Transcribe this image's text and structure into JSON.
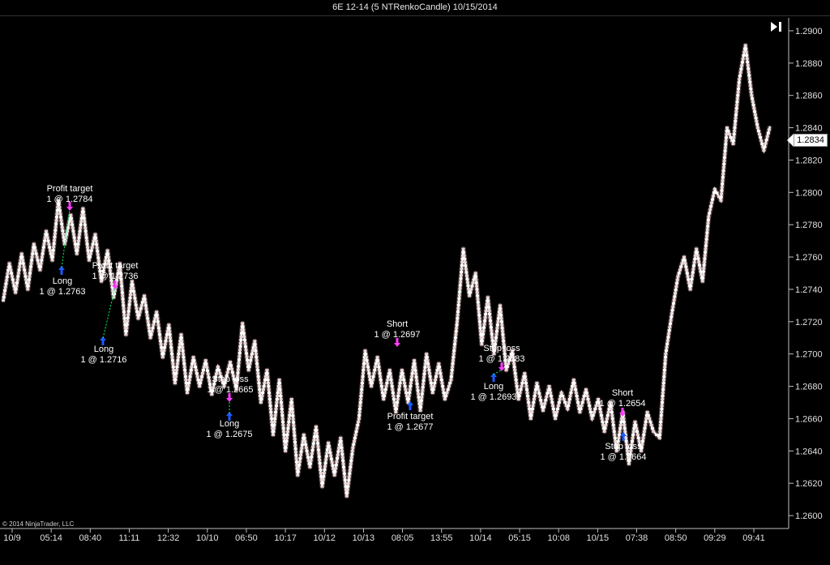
{
  "window": {
    "title": "6E 12-14 (5 NTRenkoCandle)  10/15/2014"
  },
  "copyright": "© 2014 NinjaTrader, LLC",
  "last_price": "1.2834",
  "icons": {
    "scroll_end": "skip-to-end-icon"
  },
  "colors": {
    "background": "#000000",
    "price_line": "#ffffff",
    "axis": "#bfbfbf",
    "sell_marker": "#ff3cff",
    "buy_marker": "#1e5bff",
    "entry_line": "#00ff66"
  },
  "chart_data": {
    "type": "line",
    "title": "",
    "xlabel": "",
    "ylabel": "",
    "ylim": [
      1.2593,
      1.2908
    ],
    "y_ticks": [
      1.26,
      1.262,
      1.264,
      1.266,
      1.268,
      1.27,
      1.272,
      1.274,
      1.276,
      1.278,
      1.28,
      1.282,
      1.284,
      1.286,
      1.288,
      1.29
    ],
    "y_tick_labels": [
      "1.2600",
      "1.2620",
      "1.2640",
      "1.2660",
      "1.2680",
      "1.2700",
      "1.2720",
      "1.2740",
      "1.2760",
      "1.2780",
      "1.2800",
      "1.2820",
      "1.2840",
      "1.2860",
      "1.2880",
      "1.2900"
    ],
    "x_tick_labels": [
      "10/9",
      "05:14",
      "08:40",
      "11:11",
      "12:32",
      "10/10",
      "06:50",
      "10:17",
      "10/12",
      "10/13",
      "08:05",
      "13:55",
      "10/14",
      "05:15",
      "10:08",
      "10/15",
      "07:38",
      "08:50",
      "09:29",
      "09:41"
    ],
    "grid": false,
    "series": [
      {
        "values": [
          1.2733,
          1.2756,
          1.2738,
          1.2762,
          1.274,
          1.2768,
          1.2752,
          1.2776,
          1.2758,
          1.2795,
          1.2768,
          1.2786,
          1.2762,
          1.279,
          1.2758,
          1.2774,
          1.2745,
          1.2764,
          1.2735,
          1.2756,
          1.2712,
          1.2745,
          1.2722,
          1.2736,
          1.271,
          1.2726,
          1.2698,
          1.2718,
          1.2682,
          1.2712,
          1.2676,
          1.2698,
          1.268,
          1.2696,
          1.2675,
          1.2692,
          1.268,
          1.2695,
          1.2678,
          1.2719,
          1.269,
          1.2708,
          1.267,
          1.269,
          1.265,
          1.2684,
          1.264,
          1.2672,
          1.2625,
          1.265,
          1.263,
          1.2655,
          1.2618,
          1.2645,
          1.2625,
          1.2648,
          1.2612,
          1.2642,
          1.266,
          1.2702,
          1.268,
          1.2698,
          1.2672,
          1.269,
          1.2664,
          1.269,
          1.267,
          1.2696,
          1.2665,
          1.27,
          1.2676,
          1.2694,
          1.2672,
          1.2684,
          1.272,
          1.2765,
          1.2736,
          1.275,
          1.2706,
          1.2735,
          1.27,
          1.273,
          1.269,
          1.2702,
          1.2672,
          1.2688,
          1.266,
          1.2682,
          1.2665,
          1.268,
          1.266,
          1.2676,
          1.2666,
          1.2684,
          1.2664,
          1.2678,
          1.266,
          1.2672,
          1.2652,
          1.267,
          1.264,
          1.2664,
          1.2632,
          1.2658,
          1.264,
          1.2664,
          1.2652,
          1.2648,
          1.27,
          1.2725,
          1.2748,
          1.276,
          1.274,
          1.2765,
          1.2745,
          1.2785,
          1.2802,
          1.2795,
          1.284,
          1.283,
          1.287,
          1.2891,
          1.286,
          1.284,
          1.2826,
          1.2841
        ]
      }
    ],
    "annotations": [
      {
        "lines": [
          "Profit target",
          "1 @ 1.2784"
        ],
        "value": 1.2784,
        "kind": "exit"
      },
      {
        "lines": [
          "Long",
          "1 @ 1.2763"
        ],
        "value": 1.2763,
        "kind": "long"
      },
      {
        "lines": [
          "Profit target",
          "1 @ 1.2736"
        ],
        "value": 1.2736,
        "kind": "exit"
      },
      {
        "lines": [
          "Long",
          "1 @ 1.2716"
        ],
        "value": 1.2716,
        "kind": "long"
      },
      {
        "lines": [
          "Stop loss",
          "1 @ 1.2665"
        ],
        "value": 1.2665,
        "kind": "exit"
      },
      {
        "lines": [
          "Long",
          "1 @ 1.2675"
        ],
        "value": 1.2675,
        "kind": "long"
      },
      {
        "lines": [
          "Short",
          "1 @ 1.2697"
        ],
        "value": 1.2697,
        "kind": "short"
      },
      {
        "lines": [
          "Profit target",
          "1 @ 1.2677"
        ],
        "value": 1.2677,
        "kind": "exit-buy"
      },
      {
        "lines": [
          "Stop loss",
          "1 @ 1.2683"
        ],
        "value": 1.2683,
        "kind": "exit"
      },
      {
        "lines": [
          "Long",
          "1 @ 1.2693"
        ],
        "value": 1.2693,
        "kind": "long"
      },
      {
        "lines": [
          "Short",
          "1 @ 1.2654"
        ],
        "value": 1.2654,
        "kind": "short"
      },
      {
        "lines": [
          "Stop loss",
          "1 @ 1.2664"
        ],
        "value": 1.2664,
        "kind": "exit-buy"
      }
    ]
  }
}
